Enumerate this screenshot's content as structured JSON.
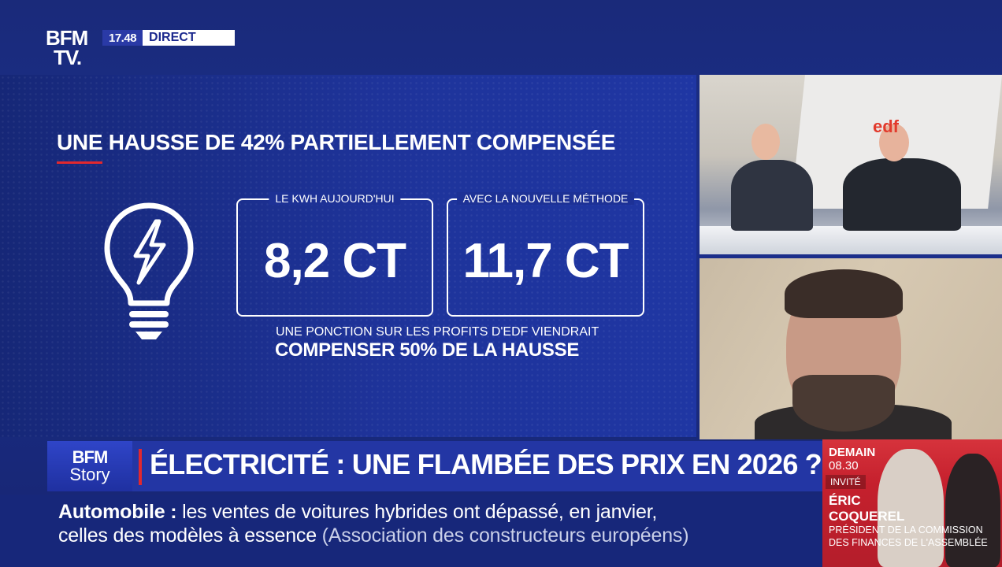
{
  "channel": {
    "logo_line1": "BFM",
    "logo_line2": "TV.",
    "time": "17.48",
    "live_label": "DIRECT"
  },
  "infographic": {
    "headline": "UNE HAUSSE DE 42% PARTIELLEMENT COMPENSÉE",
    "icon": "lightbulb-bolt-icon",
    "box1": {
      "caption": "LE KWH AUJOURD'HUI",
      "value": "8,2 CT"
    },
    "box2": {
      "caption": "AVEC LA NOUVELLE MÉTHODE",
      "value": "11,7 CT"
    },
    "note_line1": "UNE PONCTION SUR LES PROFITS D'EDF VIENDRAIT",
    "note_line2": "COMPENSER 50% DE LA HAUSSE",
    "accent_color": "#e2282e"
  },
  "studio": {
    "poster_logo": "edf"
  },
  "story": {
    "logo_line1": "BFM",
    "logo_line2": "Story",
    "title": "ÉLECTRICITÉ : UNE FLAMBÉE DES PRIX EN 2026 ?"
  },
  "promo": {
    "day": "DEMAIN",
    "hour": "08.30",
    "tag": "INVITÉ",
    "first_name": "ÉRIC",
    "last_name": "COQUEREL",
    "role_line1": "PRÉSIDENT DE LA COMMISSION",
    "role_line2": "DES FINANCES DE L'ASSEMBLÉE"
  },
  "ticker": {
    "category": "Automobile",
    "separator": " : ",
    "line1_text": "les ventes de voitures hybrides ont dépassé, en janvier,",
    "line2_text": "celles des modèles à essence",
    "source": "(Association des constructeurs européens)"
  }
}
